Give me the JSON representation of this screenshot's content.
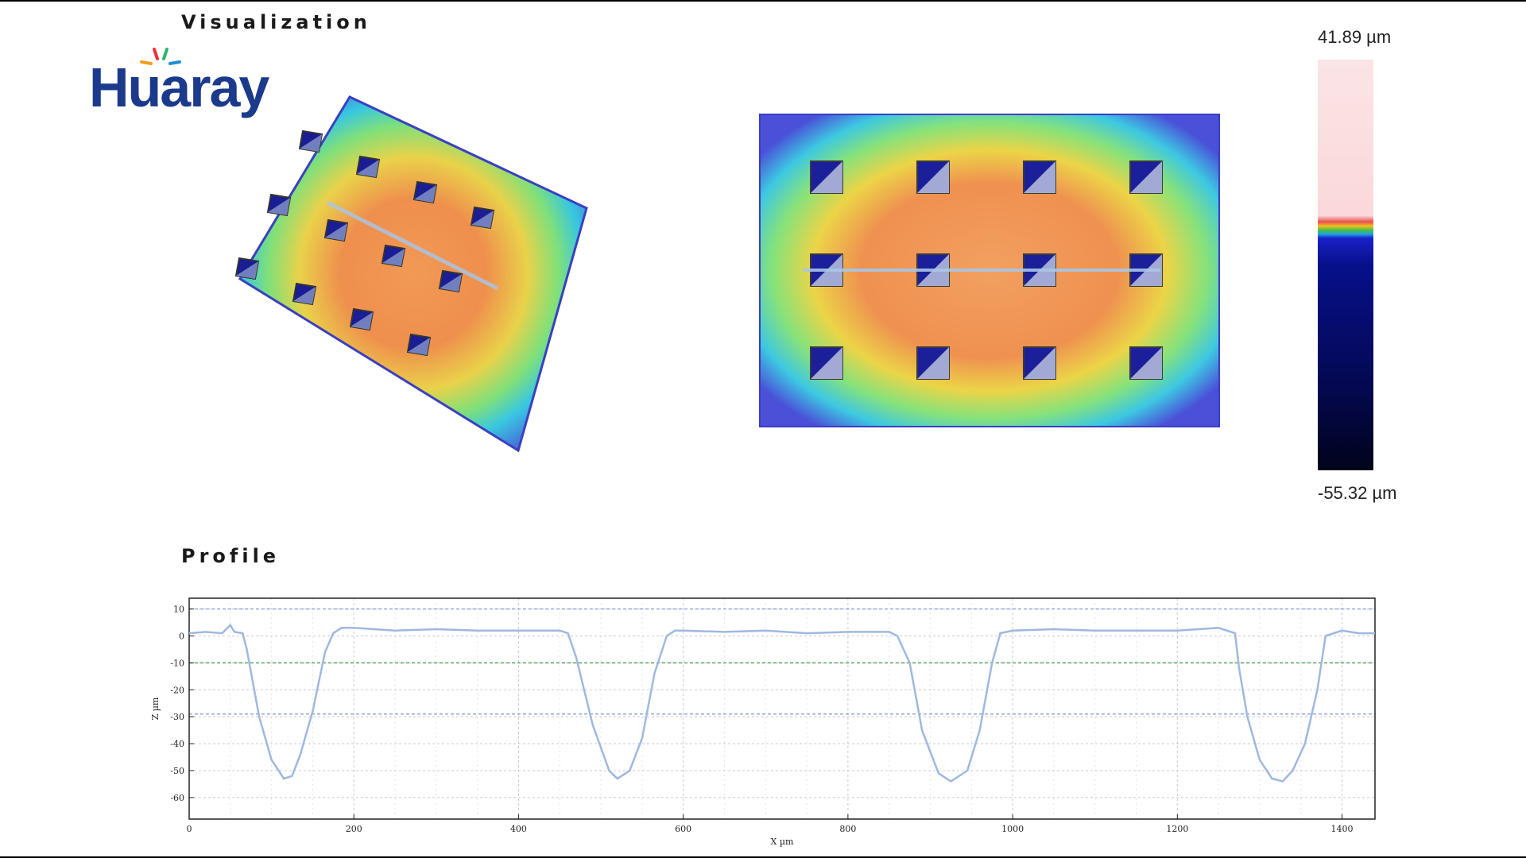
{
  "visualization": {
    "title": "Visualization",
    "logo_text": "Huaray",
    "logo_colors": {
      "text": "#1b3a8c",
      "accent": [
        "#e8303a",
        "#f0a020",
        "#2fb36b",
        "#1e90d6",
        "#7a3fb0"
      ]
    },
    "color_scale": {
      "max_label": "41.89 µm",
      "min_label": "-55.32 µm",
      "max": 41.89,
      "min": -55.32
    },
    "grid_rows": 3,
    "grid_cols": 4
  },
  "profile": {
    "title": "Profile"
  },
  "chart_data": {
    "type": "line",
    "xlabel": "X µm",
    "ylabel": "Z µm",
    "xlim": [
      0,
      1440
    ],
    "ylim": [
      -68,
      14
    ],
    "xticks": [
      0,
      200,
      400,
      600,
      800,
      1000,
      1200,
      1400
    ],
    "yticks": [
      10,
      0,
      -10,
      -20,
      -30,
      -40,
      -50,
      -60
    ],
    "reference_lines": [
      {
        "y": 10,
        "color": "#9aa6d8"
      },
      {
        "y": -10,
        "color": "#5aa55a"
      },
      {
        "y": -29,
        "color": "#9aa6d8"
      }
    ],
    "series": [
      {
        "color": "#9fb8e0",
        "x": [
          0,
          20,
          40,
          50,
          55,
          65,
          70,
          85,
          100,
          115,
          125,
          135,
          150,
          165,
          175,
          185,
          200,
          250,
          300,
          350,
          400,
          450,
          460,
          470,
          490,
          510,
          520,
          535,
          550,
          565,
          580,
          590,
          600,
          650,
          700,
          750,
          800,
          850,
          860,
          875,
          890,
          910,
          925,
          945,
          960,
          975,
          985,
          1000,
          1050,
          1100,
          1150,
          1200,
          1250,
          1270,
          1275,
          1285,
          1300,
          1315,
          1328,
          1340,
          1355,
          1370,
          1380,
          1400,
          1420,
          1440
        ],
        "y": [
          1,
          1.5,
          1,
          4,
          1.5,
          1,
          -5,
          -30,
          -46,
          -53,
          -52,
          -44,
          -28,
          -6,
          1,
          3,
          3,
          2,
          2.5,
          2,
          2,
          2,
          1,
          -8,
          -33,
          -50,
          -53,
          -50,
          -38,
          -14,
          0,
          2,
          2,
          1.5,
          2,
          1,
          1.5,
          1.5,
          0,
          -10,
          -35,
          -51,
          -54,
          -50,
          -35,
          -10,
          1,
          2,
          2.5,
          2,
          2,
          2,
          3,
          1,
          -12,
          -30,
          -46,
          -53,
          -54,
          -50,
          -40,
          -20,
          0,
          2,
          1,
          1
        ]
      }
    ]
  }
}
